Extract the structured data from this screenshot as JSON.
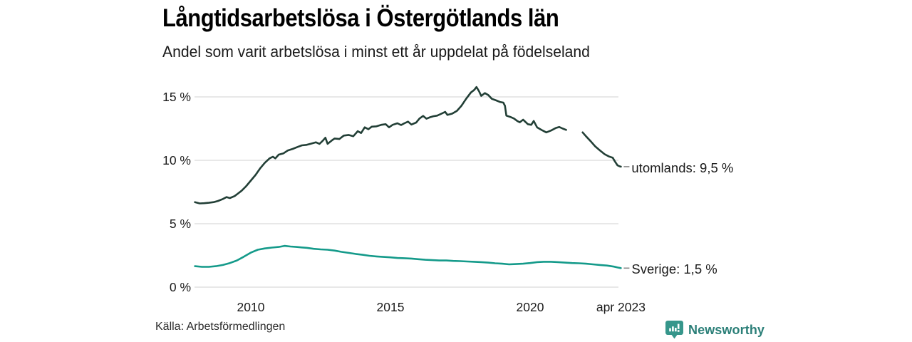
{
  "page": {
    "source": "Källa: Arbetsförmedlingen",
    "brand": {
      "name": "Newsworthy",
      "icon": "bar-chart-speech-bubble-icon",
      "icon_color": "#36968B",
      "text_color": "#2B7F78"
    },
    "colors": {
      "background": "#FFFFFF",
      "gridline": "#E1E1E1",
      "tick_text": "#1A1A1A",
      "label_connector": "#8A8A8A"
    }
  },
  "chart_data": {
    "type": "line",
    "title": "Långtidsarbetslösa i Östergötlands län",
    "subtitle": "Andel som varit arbetslösa i minst ett år uppdelat på födelseland",
    "grid": "horizontal-only",
    "legend": "end-of-line-labels",
    "x_range": [
      2008.0,
      2023.25
    ],
    "y_range": [
      0,
      16.5
    ],
    "y_unit": "%",
    "x_ticks": [
      {
        "label": "2010",
        "year": 2010
      },
      {
        "label": "2015",
        "year": 2015
      },
      {
        "label": "2020",
        "year": 2020
      },
      {
        "label": "apr 2023",
        "year": 2023.25
      }
    ],
    "y_ticks": [
      {
        "label": "0 %",
        "value": 0
      },
      {
        "label": "5 %",
        "value": 5
      },
      {
        "label": "10 %",
        "value": 10
      },
      {
        "label": "15 %",
        "value": 15
      }
    ],
    "series": [
      {
        "name": "utomlands",
        "end_label": "utomlands: 9,5 %",
        "last_value": 9.5,
        "color": "#223F36",
        "note": "gap in data between 2021.3 and 2021.9",
        "segments": [
          [
            [
              2008.0,
              6.7
            ],
            [
              2008.17,
              6.6
            ],
            [
              2008.33,
              6.62
            ],
            [
              2008.5,
              6.65
            ],
            [
              2008.67,
              6.7
            ],
            [
              2008.83,
              6.8
            ],
            [
              2009.0,
              6.95
            ],
            [
              2009.13,
              7.1
            ],
            [
              2009.25,
              7.02
            ],
            [
              2009.42,
              7.18
            ],
            [
              2009.54,
              7.38
            ],
            [
              2009.67,
              7.6
            ],
            [
              2009.83,
              7.95
            ],
            [
              2010.0,
              8.4
            ],
            [
              2010.17,
              8.85
            ],
            [
              2010.33,
              9.35
            ],
            [
              2010.5,
              9.8
            ],
            [
              2010.67,
              10.15
            ],
            [
              2010.79,
              10.28
            ],
            [
              2010.88,
              10.15
            ],
            [
              2011.0,
              10.45
            ],
            [
              2011.17,
              10.55
            ],
            [
              2011.33,
              10.78
            ],
            [
              2011.5,
              10.9
            ],
            [
              2011.67,
              11.05
            ],
            [
              2011.83,
              11.18
            ],
            [
              2012.0,
              11.22
            ],
            [
              2012.17,
              11.32
            ],
            [
              2012.33,
              11.42
            ],
            [
              2012.46,
              11.3
            ],
            [
              2012.58,
              11.55
            ],
            [
              2012.67,
              11.78
            ],
            [
              2012.75,
              11.3
            ],
            [
              2012.92,
              11.6
            ],
            [
              2013.0,
              11.72
            ],
            [
              2013.17,
              11.68
            ],
            [
              2013.33,
              11.95
            ],
            [
              2013.5,
              12.0
            ],
            [
              2013.67,
              11.9
            ],
            [
              2013.83,
              12.3
            ],
            [
              2013.95,
              12.15
            ],
            [
              2014.08,
              12.6
            ],
            [
              2014.21,
              12.45
            ],
            [
              2014.33,
              12.65
            ],
            [
              2014.5,
              12.68
            ],
            [
              2014.67,
              12.8
            ],
            [
              2014.83,
              12.85
            ],
            [
              2014.95,
              12.6
            ],
            [
              2015.08,
              12.8
            ],
            [
              2015.25,
              12.92
            ],
            [
              2015.38,
              12.78
            ],
            [
              2015.5,
              12.92
            ],
            [
              2015.63,
              13.05
            ],
            [
              2015.75,
              12.82
            ],
            [
              2015.92,
              12.98
            ],
            [
              2016.04,
              13.3
            ],
            [
              2016.17,
              13.5
            ],
            [
              2016.29,
              13.28
            ],
            [
              2016.42,
              13.4
            ],
            [
              2016.54,
              13.48
            ],
            [
              2016.67,
              13.52
            ],
            [
              2016.83,
              13.68
            ],
            [
              2016.96,
              13.82
            ],
            [
              2017.04,
              13.58
            ],
            [
              2017.21,
              13.68
            ],
            [
              2017.38,
              13.9
            ],
            [
              2017.54,
              14.3
            ],
            [
              2017.71,
              14.85
            ],
            [
              2017.88,
              15.35
            ],
            [
              2018.0,
              15.55
            ],
            [
              2018.08,
              15.78
            ],
            [
              2018.17,
              15.45
            ],
            [
              2018.25,
              15.08
            ],
            [
              2018.38,
              15.3
            ],
            [
              2018.5,
              15.15
            ],
            [
              2018.63,
              14.85
            ],
            [
              2018.79,
              14.72
            ],
            [
              2018.92,
              14.6
            ],
            [
              2019.04,
              14.55
            ],
            [
              2019.1,
              14.3
            ],
            [
              2019.15,
              13.52
            ],
            [
              2019.29,
              13.42
            ],
            [
              2019.42,
              13.3
            ],
            [
              2019.54,
              13.1
            ],
            [
              2019.63,
              13.0
            ],
            [
              2019.75,
              13.2
            ],
            [
              2019.92,
              12.85
            ],
            [
              2020.04,
              12.8
            ],
            [
              2020.13,
              13.1
            ],
            [
              2020.25,
              12.6
            ],
            [
              2020.42,
              12.38
            ],
            [
              2020.58,
              12.2
            ],
            [
              2020.75,
              12.35
            ],
            [
              2020.92,
              12.55
            ],
            [
              2021.04,
              12.63
            ],
            [
              2021.17,
              12.5
            ],
            [
              2021.29,
              12.4
            ]
          ],
          [
            [
              2021.88,
              12.2
            ],
            [
              2022.0,
              11.9
            ],
            [
              2022.17,
              11.5
            ],
            [
              2022.33,
              11.1
            ],
            [
              2022.5,
              10.78
            ],
            [
              2022.67,
              10.48
            ],
            [
              2022.83,
              10.3
            ],
            [
              2022.96,
              10.2
            ],
            [
              2023.04,
              9.9
            ],
            [
              2023.13,
              9.6
            ],
            [
              2023.21,
              9.52
            ],
            [
              2023.25,
              9.5
            ]
          ]
        ]
      },
      {
        "name": "Sverige",
        "end_label": "Sverige: 1,5 %",
        "last_value": 1.5,
        "color": "#149A8A",
        "segments": [
          [
            [
              2008.0,
              1.65
            ],
            [
              2008.25,
              1.6
            ],
            [
              2008.5,
              1.6
            ],
            [
              2008.75,
              1.65
            ],
            [
              2009.0,
              1.75
            ],
            [
              2009.25,
              1.9
            ],
            [
              2009.5,
              2.1
            ],
            [
              2009.75,
              2.4
            ],
            [
              2010.0,
              2.72
            ],
            [
              2010.25,
              2.95
            ],
            [
              2010.5,
              3.05
            ],
            [
              2010.75,
              3.12
            ],
            [
              2011.0,
              3.17
            ],
            [
              2011.21,
              3.25
            ],
            [
              2011.42,
              3.2
            ],
            [
              2011.63,
              3.17
            ],
            [
              2011.83,
              3.13
            ],
            [
              2012.0,
              3.1
            ],
            [
              2012.25,
              3.02
            ],
            [
              2012.5,
              2.98
            ],
            [
              2012.75,
              2.95
            ],
            [
              2013.0,
              2.88
            ],
            [
              2013.25,
              2.78
            ],
            [
              2013.5,
              2.7
            ],
            [
              2013.75,
              2.62
            ],
            [
              2014.0,
              2.55
            ],
            [
              2014.25,
              2.47
            ],
            [
              2014.5,
              2.42
            ],
            [
              2014.75,
              2.38
            ],
            [
              2015.0,
              2.35
            ],
            [
              2015.25,
              2.3
            ],
            [
              2015.5,
              2.28
            ],
            [
              2015.75,
              2.25
            ],
            [
              2016.0,
              2.2
            ],
            [
              2016.25,
              2.16
            ],
            [
              2016.5,
              2.13
            ],
            [
              2016.75,
              2.1
            ],
            [
              2017.0,
              2.1
            ],
            [
              2017.25,
              2.07
            ],
            [
              2017.5,
              2.05
            ],
            [
              2017.75,
              2.02
            ],
            [
              2018.0,
              2.0
            ],
            [
              2018.25,
              1.97
            ],
            [
              2018.5,
              1.93
            ],
            [
              2018.75,
              1.88
            ],
            [
              2019.0,
              1.85
            ],
            [
              2019.25,
              1.8
            ],
            [
              2019.5,
              1.82
            ],
            [
              2019.75,
              1.85
            ],
            [
              2020.0,
              1.9
            ],
            [
              2020.25,
              1.97
            ],
            [
              2020.5,
              2.0
            ],
            [
              2020.75,
              2.0
            ],
            [
              2021.0,
              1.97
            ],
            [
              2021.25,
              1.93
            ],
            [
              2021.5,
              1.9
            ],
            [
              2021.75,
              1.88
            ],
            [
              2022.0,
              1.85
            ],
            [
              2022.25,
              1.8
            ],
            [
              2022.5,
              1.75
            ],
            [
              2022.75,
              1.7
            ],
            [
              2023.0,
              1.62
            ],
            [
              2023.13,
              1.55
            ],
            [
              2023.25,
              1.5
            ]
          ]
        ]
      }
    ]
  }
}
